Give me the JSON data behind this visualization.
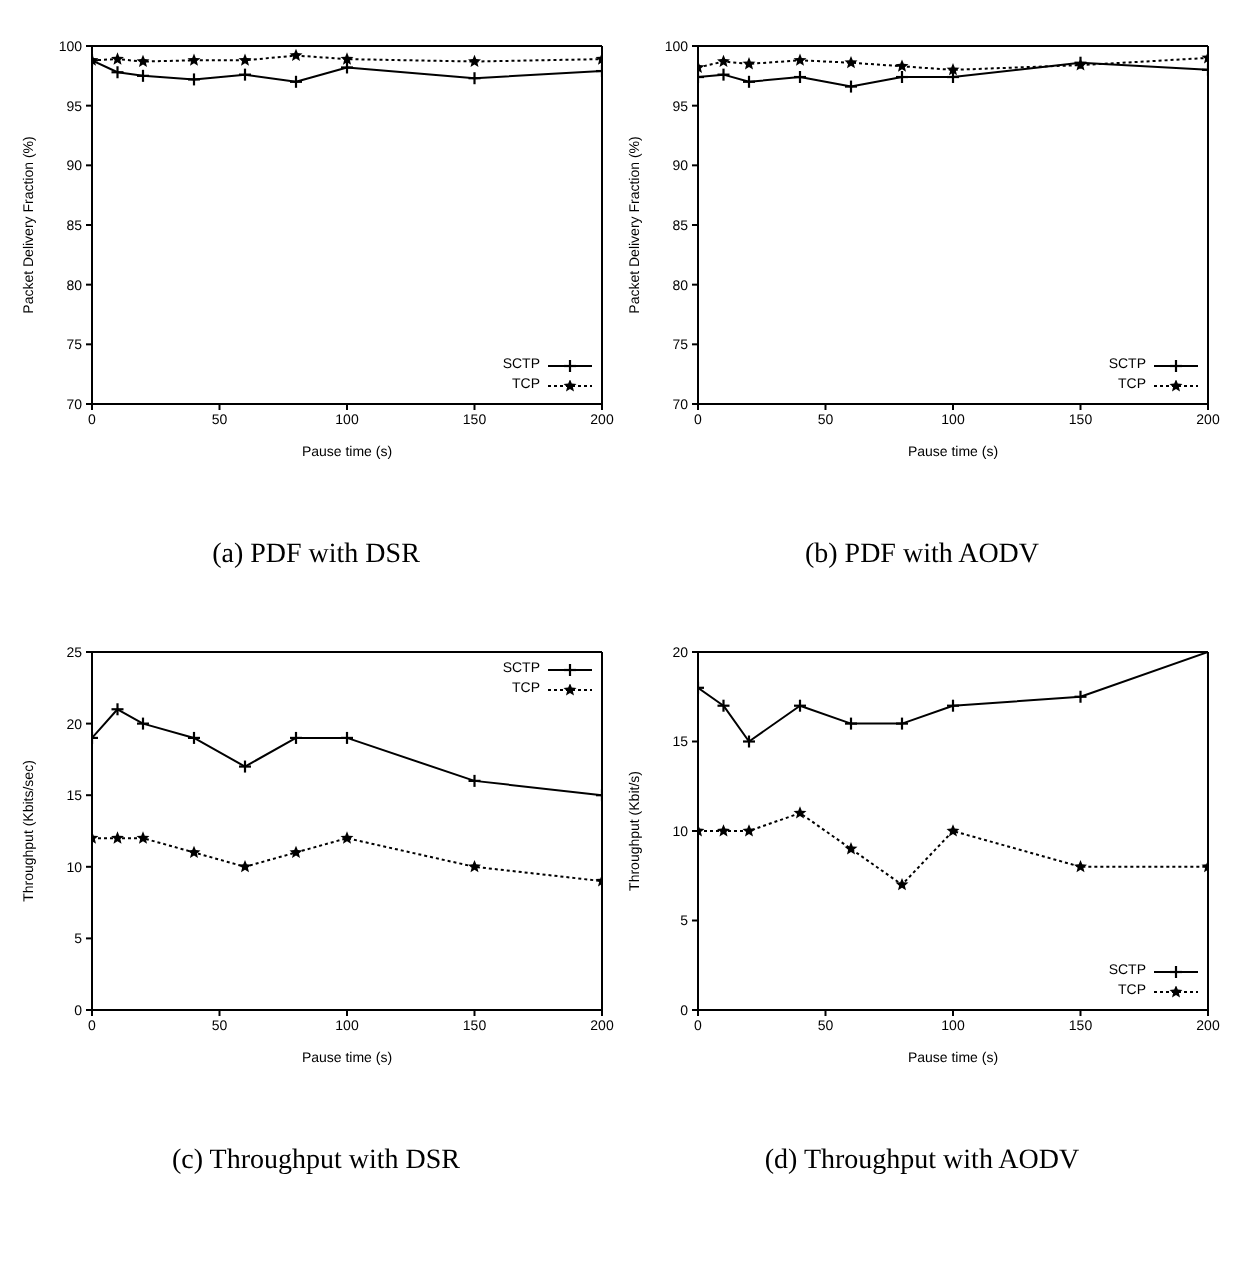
{
  "chart_data": [
    {
      "type": "line",
      "title": "(a) PDF with DSR",
      "xlabel": "Pause time (s)",
      "ylabel": "Packet Delivery Fraction (%)",
      "x": [
        0,
        10,
        20,
        40,
        60,
        80,
        100,
        150,
        200
      ],
      "xlim": [
        0,
        200
      ],
      "xticks": [
        0,
        50,
        100,
        150,
        200
      ],
      "ylim": [
        70,
        100
      ],
      "yticks": [
        70,
        75,
        80,
        85,
        90,
        95,
        100
      ],
      "legend": "bottom right",
      "grid": false,
      "series": [
        {
          "name": "SCTP",
          "color": "#000000",
          "line_style": "solid",
          "marker": "cross",
          "values": [
            98.8,
            97.8,
            97.5,
            97.2,
            97.6,
            97.0,
            98.2,
            97.3,
            97.9
          ]
        },
        {
          "name": "TCP",
          "color": "#000000",
          "line_style": "dotted",
          "marker": "star",
          "values": [
            98.8,
            98.9,
            98.7,
            98.8,
            98.8,
            99.2,
            98.9,
            98.7,
            98.9
          ]
        }
      ]
    },
    {
      "type": "line",
      "title": "(b) PDF with AODV",
      "xlabel": "Pause time (s)",
      "ylabel": "Packet Delivery Fraction (%)",
      "x": [
        0,
        10,
        20,
        40,
        60,
        80,
        100,
        150,
        200
      ],
      "xlim": [
        0,
        200
      ],
      "xticks": [
        0,
        50,
        100,
        150,
        200
      ],
      "ylim": [
        70,
        100
      ],
      "yticks": [
        70,
        75,
        80,
        85,
        90,
        95,
        100
      ],
      "legend": "bottom right",
      "grid": false,
      "series": [
        {
          "name": "SCTP",
          "color": "#000000",
          "line_style": "solid",
          "marker": "cross",
          "values": [
            97.4,
            97.6,
            97.0,
            97.4,
            96.6,
            97.4,
            97.4,
            98.6,
            98.0
          ]
        },
        {
          "name": "TCP",
          "color": "#000000",
          "line_style": "dotted",
          "marker": "star",
          "values": [
            98.2,
            98.7,
            98.5,
            98.8,
            98.6,
            98.3,
            98.0,
            98.4,
            99.0
          ]
        }
      ]
    },
    {
      "type": "line",
      "title": "(c) Throughput with DSR",
      "xlabel": "Pause time (s)",
      "ylabel": "Throughput (Kbits/sec)",
      "x": [
        0,
        10,
        20,
        40,
        60,
        80,
        100,
        150,
        200
      ],
      "xlim": [
        0,
        200
      ],
      "xticks": [
        0,
        50,
        100,
        150,
        200
      ],
      "ylim": [
        0,
        25
      ],
      "yticks": [
        0,
        5,
        10,
        15,
        20,
        25
      ],
      "legend": "top right",
      "grid": false,
      "series": [
        {
          "name": "SCTP",
          "color": "#000000",
          "line_style": "solid",
          "marker": "cross",
          "values": [
            19,
            21,
            20,
            19,
            17,
            19,
            19,
            16,
            15
          ]
        },
        {
          "name": "TCP",
          "color": "#000000",
          "line_style": "dotted",
          "marker": "star",
          "values": [
            12,
            12,
            12,
            11,
            10,
            11,
            12,
            10,
            9
          ]
        }
      ]
    },
    {
      "type": "line",
      "title": "(d) Throughput with AODV",
      "xlabel": "Pause time (s)",
      "ylabel": "Throughput (Kbit/s)",
      "x": [
        0,
        10,
        20,
        40,
        60,
        80,
        100,
        150,
        200
      ],
      "xlim": [
        0,
        200
      ],
      "xticks": [
        0,
        50,
        100,
        150,
        200
      ],
      "ylim": [
        0,
        20
      ],
      "yticks": [
        0,
        5,
        10,
        15,
        20
      ],
      "legend": "bottom right",
      "grid": false,
      "series": [
        {
          "name": "SCTP",
          "color": "#000000",
          "line_style": "solid",
          "marker": "cross",
          "values": [
            18,
            17,
            15,
            17,
            16,
            16,
            17,
            17.5,
            20
          ]
        },
        {
          "name": "TCP",
          "color": "#000000",
          "line_style": "dotted",
          "marker": "star",
          "values": [
            10,
            10,
            10,
            11,
            9,
            7,
            10,
            8,
            8
          ]
        }
      ]
    }
  ]
}
